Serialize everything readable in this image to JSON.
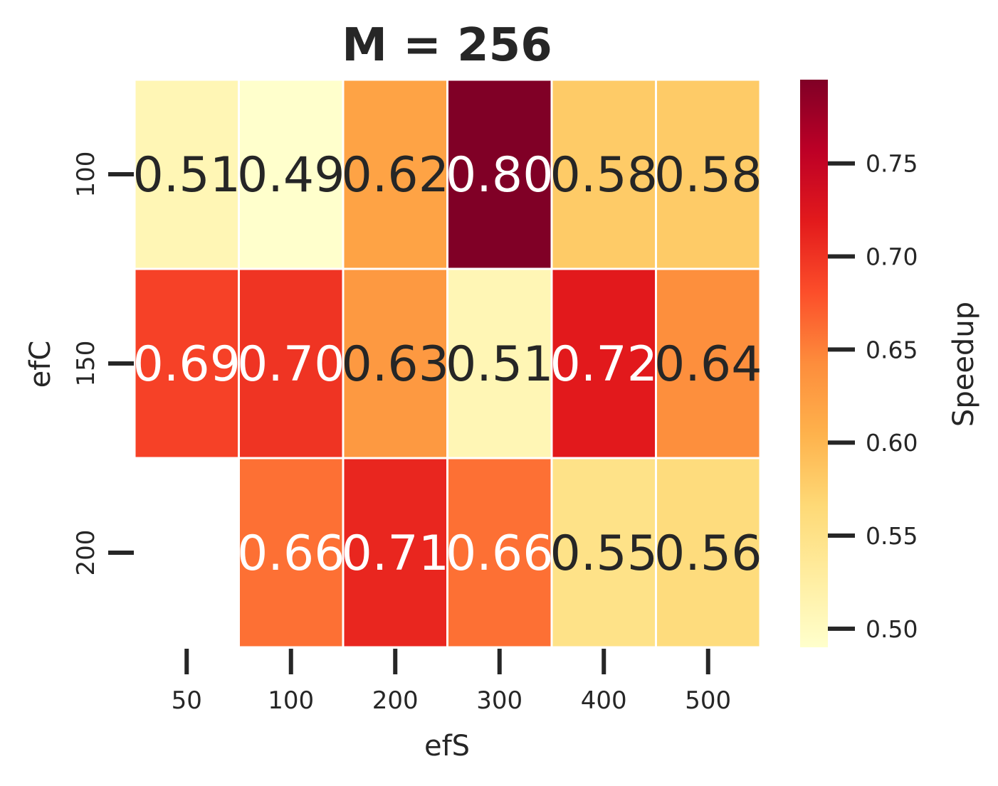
{
  "chart_data": {
    "type": "heatmap",
    "title": "M = 256",
    "xlabel": "efS",
    "ylabel": "efC",
    "x_categories": [
      "50",
      "100",
      "200",
      "300",
      "400",
      "500"
    ],
    "y_categories": [
      "100",
      "150",
      "200"
    ],
    "values": [
      [
        0.51,
        0.49,
        0.62,
        0.8,
        0.58,
        0.58
      ],
      [
        0.69,
        0.7,
        0.63,
        0.51,
        0.72,
        0.64
      ],
      [
        null,
        0.66,
        0.71,
        0.66,
        0.55,
        0.56
      ]
    ],
    "colorbar": {
      "label": "Speedup",
      "range": [
        0.49,
        0.795
      ],
      "ticks": [
        "0.50",
        "0.55",
        "0.60",
        "0.65",
        "0.70",
        "0.75"
      ],
      "colormap": "YlOrRd"
    },
    "grid": false
  }
}
